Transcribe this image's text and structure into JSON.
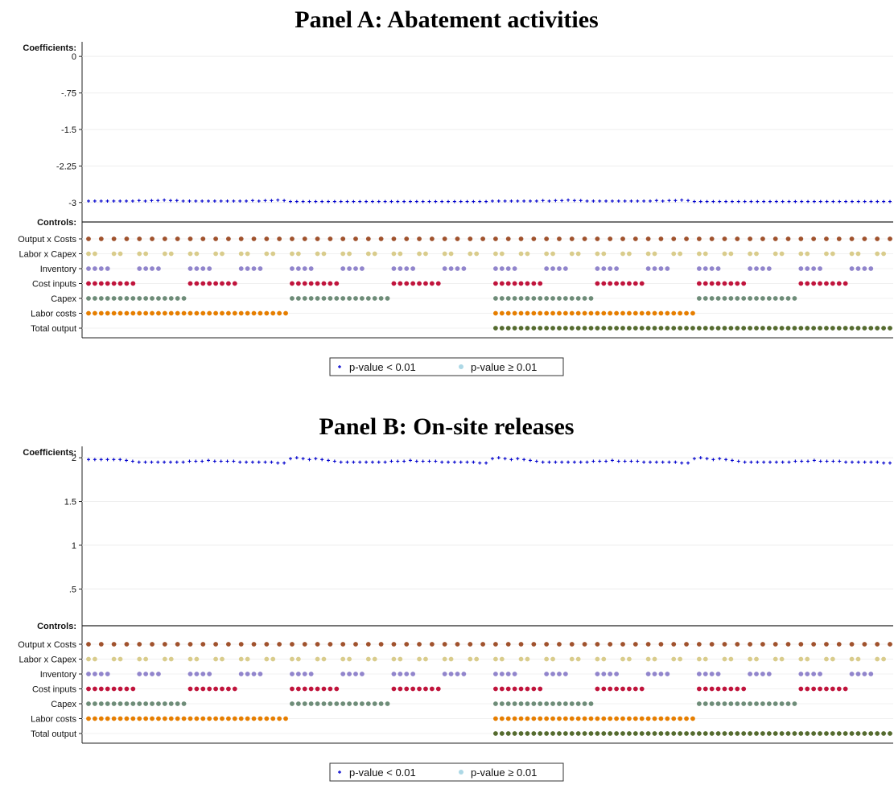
{
  "chart_data": [
    {
      "type": "scatter",
      "title": "Panel A: Abatement activities",
      "coef_axis_title": "Coefficients:",
      "controls_axis_title": "Controls:",
      "yticks": [
        "0",
        "-.75",
        "-1.5",
        "-2.25",
        "-3"
      ],
      "ytick_values": [
        0,
        -0.75,
        -1.5,
        -2.25,
        -3
      ],
      "ylim": [
        -3.4,
        0.3
      ],
      "x_range": [
        1,
        127
      ],
      "grid": true,
      "controls": [
        {
          "name": "Output x Costs",
          "color": "#A0522D",
          "pattern": [
            1,
            0
          ]
        },
        {
          "name": "Labor x Capex",
          "color": "#D9CC8C",
          "pattern": [
            1,
            1,
            0,
            0
          ]
        },
        {
          "name": "Inventory",
          "color": "#9185CC",
          "pattern": [
            1,
            1,
            1,
            1,
            0,
            0,
            0,
            0
          ]
        },
        {
          "name": "Cost inputs",
          "color": "#C0143C",
          "pattern": [
            1,
            1,
            1,
            1,
            1,
            1,
            1,
            1,
            0,
            0,
            0,
            0,
            0,
            0,
            0,
            0
          ]
        },
        {
          "name": "Capex",
          "color": "#6E8C78",
          "pattern": [
            1,
            1,
            1,
            1,
            1,
            1,
            1,
            1,
            1,
            1,
            1,
            1,
            1,
            1,
            1,
            1,
            0,
            0,
            0,
            0,
            0,
            0,
            0,
            0,
            0,
            0,
            0,
            0,
            0,
            0,
            0,
            0
          ]
        },
        {
          "name": "Labor costs",
          "color": "#E67E00",
          "pattern": [
            1,
            1,
            1,
            1,
            1,
            1,
            1,
            1,
            1,
            1,
            1,
            1,
            1,
            1,
            1,
            1,
            1,
            1,
            1,
            1,
            1,
            1,
            1,
            1,
            1,
            1,
            1,
            1,
            1,
            1,
            1,
            1,
            0,
            0,
            0,
            0,
            0,
            0,
            0,
            0,
            0,
            0,
            0,
            0,
            0,
            0,
            0,
            0,
            0,
            0,
            0,
            0,
            0,
            0,
            0,
            0,
            0,
            0,
            0,
            0,
            0,
            0,
            0,
            0
          ]
        },
        {
          "name": "Total output",
          "color": "#556B2F",
          "pattern_total": true
        }
      ],
      "series": [
        {
          "name": "p-value < 0.01",
          "marker": "plus",
          "color": "#0000CD",
          "base": -2.97,
          "variation": [
            0.0,
            0.0,
            0.0,
            0.0,
            0.0,
            0.0,
            0.0,
            0.0,
            0.01,
            0.0,
            0.01,
            0.01,
            0.02,
            0.01,
            0.01,
            0.0,
            0.0,
            0.0,
            0.0,
            0.0,
            0.0,
            0.0,
            0.0,
            0.0,
            0.0,
            0.0,
            0.01,
            0.0,
            0.01,
            0.01,
            0.02,
            0.01,
            -0.01,
            -0.01,
            -0.01,
            -0.01,
            -0.01,
            -0.01,
            -0.01,
            -0.01,
            -0.01,
            -0.01,
            -0.01,
            -0.01,
            -0.01,
            -0.01,
            -0.01,
            -0.01,
            -0.01,
            -0.01,
            -0.01,
            -0.01,
            -0.01,
            -0.01,
            -0.01,
            -0.01,
            -0.01,
            -0.01,
            -0.01,
            -0.01,
            -0.01,
            -0.01,
            -0.01,
            -0.01,
            0.0,
            0.0,
            0.0,
            0.0,
            0.0,
            0.0,
            0.0,
            0.0,
            0.01,
            0.0,
            0.01,
            0.01,
            0.02,
            0.01,
            0.01,
            0.0,
            0.0,
            0.0,
            0.0,
            0.0,
            0.0,
            0.0,
            0.0,
            0.0,
            0.0,
            0.0,
            0.01,
            0.0,
            0.01,
            0.01,
            0.02,
            0.01,
            -0.01,
            -0.01,
            -0.01,
            -0.01,
            -0.01,
            -0.01,
            -0.01,
            -0.01,
            -0.01,
            -0.01,
            -0.01,
            -0.01,
            -0.01,
            -0.01,
            -0.01,
            -0.01,
            -0.01,
            -0.01,
            -0.01,
            -0.01,
            -0.01,
            -0.01,
            -0.01,
            -0.01,
            -0.01,
            -0.01,
            -0.01,
            -0.01,
            -0.01,
            -0.01,
            -0.01,
            -0.01
          ]
        },
        {
          "name": "p-value ≥ 0.01",
          "marker": "dot",
          "color": "#ADD8E6",
          "values": []
        }
      ]
    },
    {
      "type": "scatter",
      "title": "Panel B: On-site releases",
      "coef_axis_title": "Coefficients:",
      "controls_axis_title": "Controls:",
      "yticks": [
        "2",
        "1.5",
        "1",
        ".5"
      ],
      "ytick_values": [
        2,
        1.5,
        1,
        0.5
      ],
      "ylim": [
        0.08,
        2.13
      ],
      "x_range": [
        1,
        127
      ],
      "grid": true,
      "controls": [
        {
          "name": "Output x Costs",
          "color": "#A0522D",
          "pattern": [
            1,
            0
          ]
        },
        {
          "name": "Labor x Capex",
          "color": "#D9CC8C",
          "pattern": [
            1,
            1,
            0,
            0
          ]
        },
        {
          "name": "Inventory",
          "color": "#9185CC",
          "pattern": [
            1,
            1,
            1,
            1,
            0,
            0,
            0,
            0
          ]
        },
        {
          "name": "Cost inputs",
          "color": "#C0143C",
          "pattern": [
            1,
            1,
            1,
            1,
            1,
            1,
            1,
            1,
            0,
            0,
            0,
            0,
            0,
            0,
            0,
            0
          ]
        },
        {
          "name": "Capex",
          "color": "#6E8C78",
          "pattern": [
            1,
            1,
            1,
            1,
            1,
            1,
            1,
            1,
            1,
            1,
            1,
            1,
            1,
            1,
            1,
            1,
            0,
            0,
            0,
            0,
            0,
            0,
            0,
            0,
            0,
            0,
            0,
            0,
            0,
            0,
            0,
            0
          ]
        },
        {
          "name": "Labor costs",
          "color": "#E67E00",
          "pattern": [
            1,
            1,
            1,
            1,
            1,
            1,
            1,
            1,
            1,
            1,
            1,
            1,
            1,
            1,
            1,
            1,
            1,
            1,
            1,
            1,
            1,
            1,
            1,
            1,
            1,
            1,
            1,
            1,
            1,
            1,
            1,
            1,
            0,
            0,
            0,
            0,
            0,
            0,
            0,
            0,
            0,
            0,
            0,
            0,
            0,
            0,
            0,
            0,
            0,
            0,
            0,
            0,
            0,
            0,
            0,
            0,
            0,
            0,
            0,
            0,
            0,
            0,
            0,
            0
          ]
        },
        {
          "name": "Total output",
          "color": "#556B2F",
          "pattern_total": true
        }
      ],
      "series": [
        {
          "name": "p-value < 0.01",
          "marker": "plus",
          "color": "#0000CD",
          "base": 1.96,
          "variation": [
            0.02,
            0.02,
            0.02,
            0.02,
            0.02,
            0.02,
            0.01,
            0.0,
            -0.01,
            -0.01,
            -0.01,
            -0.01,
            -0.01,
            -0.01,
            -0.01,
            -0.01,
            0.0,
            0.0,
            0.0,
            0.01,
            0.0,
            0.0,
            0.0,
            0.0,
            -0.01,
            -0.01,
            -0.01,
            -0.01,
            -0.01,
            -0.01,
            -0.02,
            -0.02,
            0.03,
            0.04,
            0.03,
            0.02,
            0.03,
            0.02,
            0.01,
            0.0,
            -0.01,
            -0.01,
            -0.01,
            -0.01,
            -0.01,
            -0.01,
            -0.01,
            -0.01,
            0.0,
            0.0,
            0.0,
            0.01,
            0.0,
            0.0,
            0.0,
            0.0,
            -0.01,
            -0.01,
            -0.01,
            -0.01,
            -0.01,
            -0.01,
            -0.02,
            -0.02,
            0.03,
            0.04,
            0.03,
            0.02,
            0.03,
            0.02,
            0.01,
            0.0,
            -0.01,
            -0.01,
            -0.01,
            -0.01,
            -0.01,
            -0.01,
            -0.01,
            -0.01,
            0.0,
            0.0,
            0.0,
            0.01,
            0.0,
            0.0,
            0.0,
            0.0,
            -0.01,
            -0.01,
            -0.01,
            -0.01,
            -0.01,
            -0.01,
            -0.02,
            -0.02,
            0.03,
            0.04,
            0.03,
            0.02,
            0.03,
            0.02,
            0.01,
            0.0,
            -0.01,
            -0.01,
            -0.01,
            -0.01,
            -0.01,
            -0.01,
            -0.01,
            -0.01,
            0.0,
            0.0,
            0.0,
            0.01,
            0.0,
            0.0,
            0.0,
            0.0,
            -0.01,
            -0.01,
            -0.01,
            -0.01,
            -0.01,
            -0.01,
            -0.02,
            -0.02
          ]
        },
        {
          "name": "p-value ≥ 0.01",
          "marker": "dot",
          "color": "#ADD8E6",
          "values": []
        }
      ]
    }
  ]
}
